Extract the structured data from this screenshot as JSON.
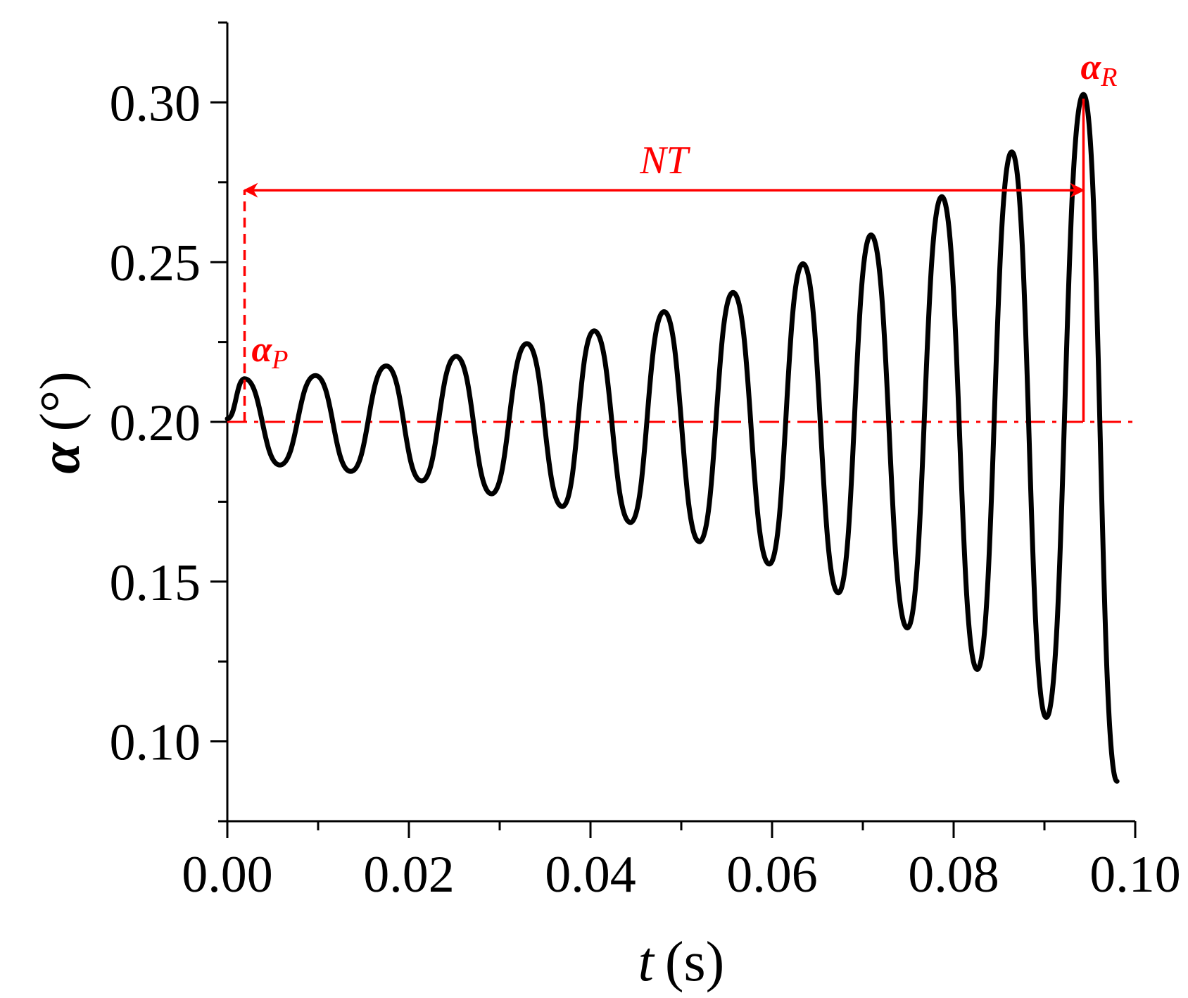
{
  "chart_data": {
    "type": "line",
    "title": "",
    "xlabel": {
      "symbol": "t",
      "unit": "(s)"
    },
    "ylabel": {
      "symbol": "α",
      "unit": "(°)"
    },
    "xlim": [
      0.0,
      0.1
    ],
    "ylim": [
      0.075,
      0.325
    ],
    "x_ticks": [
      "0.00",
      "0.02",
      "0.04",
      "0.06",
      "0.08",
      "0.10"
    ],
    "y_ticks": [
      "0.10",
      "0.15",
      "0.20",
      "0.25",
      "0.30"
    ],
    "grid": false,
    "legend": "none",
    "series": [
      {
        "color": "#000000",
        "x": [
          0.0,
          0.0019,
          0.0058,
          0.0097,
          0.0136,
          0.0175,
          0.0214,
          0.0252,
          0.0291,
          0.033,
          0.0369,
          0.0404,
          0.0444,
          0.0481,
          0.052,
          0.0557,
          0.0597,
          0.0634,
          0.0673,
          0.0709,
          0.0749,
          0.0787,
          0.0826,
          0.0864,
          0.0902,
          0.0943,
          0.098
        ],
        "y": [
          0.201,
          0.2135,
          0.1865,
          0.2145,
          0.1845,
          0.2175,
          0.1815,
          0.2205,
          0.1775,
          0.2245,
          0.1735,
          0.2285,
          0.1685,
          0.2345,
          0.1625,
          0.2405,
          0.1555,
          0.2495,
          0.1465,
          0.2585,
          0.1355,
          0.2705,
          0.1225,
          0.2845,
          0.1075,
          0.3025,
          0.0875
        ]
      }
    ],
    "reference_line": {
      "y": 0.2,
      "style": "dash-dot",
      "color": "#ff0000"
    },
    "annotations": {
      "alpha_p": {
        "symbol": "α",
        "subscript": "P",
        "x": 0.0019,
        "y": 0.2135
      },
      "alpha_r": {
        "symbol": "α",
        "subscript": "R",
        "x": 0.0943,
        "y": 0.3025
      },
      "nt": {
        "label": "NT",
        "x_start": 0.0019,
        "x_end": 0.0943,
        "y": 0.2725
      }
    },
    "annotation_color": "#ff0000"
  }
}
